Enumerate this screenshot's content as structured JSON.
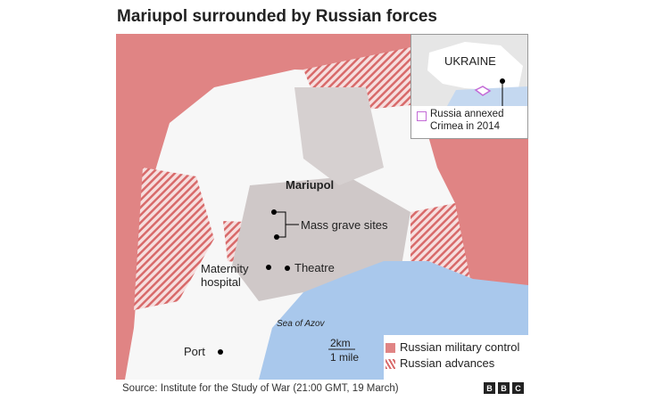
{
  "title": "Mariupol surrounded by Russian forces",
  "labels": {
    "city": "Mariupol",
    "mass_graves": "Mass grave sites",
    "maternity": "Maternity\nhospital",
    "theatre": "Theatre",
    "sea": "Sea of Azov",
    "port": "Port"
  },
  "inset": {
    "country": "UKRAINE",
    "legend": "Russia annexed Crimea in 2014",
    "crimea_color": "#c36ad6"
  },
  "scale": {
    "km": "2km",
    "mile": "1 mile"
  },
  "legend": {
    "control": "Russian military control",
    "advances": "Russian advances",
    "control_color": "#e08484",
    "advances_color": "#d86a6a"
  },
  "source": "Source: Institute for the Study of War (21:00 GMT, 19 March)",
  "logo": "BBC",
  "colors": {
    "sea": "#a9c8ec",
    "urban": "#c9c3c3"
  }
}
